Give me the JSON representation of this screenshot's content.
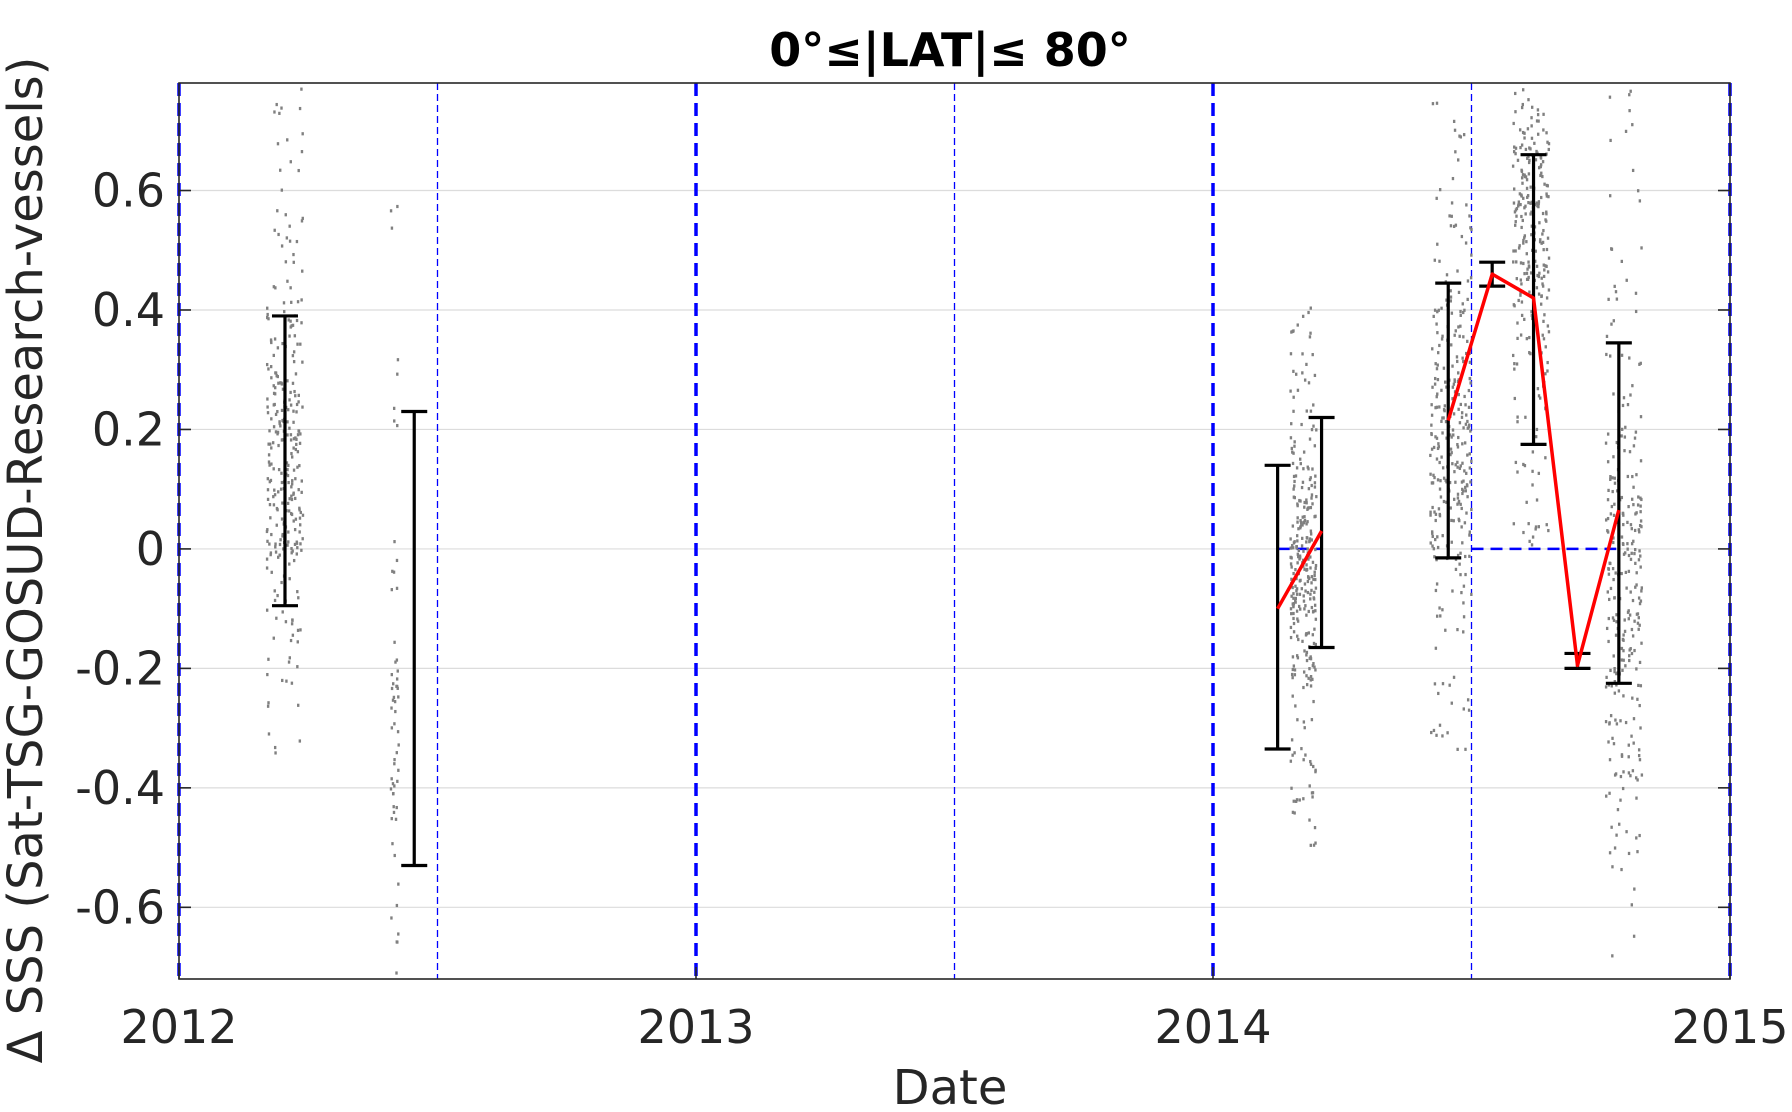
{
  "chart_data": {
    "type": "scatter",
    "title": "0°≤|LAT|≤ 80°",
    "xlabel": "Date",
    "ylabel": "Δ SSS (Sat-TSG-GOSUD-Research-vessels)",
    "xlim": [
      2012.0,
      2015.0
    ],
    "ylim": [
      -0.72,
      0.78
    ],
    "x_tick_labels": [
      "2012",
      "2013",
      "2014",
      "2015"
    ],
    "x_ticks": [
      2012,
      2013,
      2014,
      2015
    ],
    "y_tick_labels": [
      "-0.6",
      "-0.4",
      "-0.2",
      "0",
      "0.2",
      "0.4",
      "0.6"
    ],
    "y_ticks": [
      -0.6,
      -0.4,
      -0.2,
      0,
      0.2,
      0.4,
      0.6
    ],
    "grid": "horizontal",
    "colors": {
      "scatter": "#808080",
      "errorbar": "#000000",
      "mean_line": "#ff0000",
      "reference": "#0000ff",
      "grid": "#dcdcdc"
    },
    "year_boundaries": [
      2012.0,
      2013.0,
      2014.0,
      2015.0
    ],
    "half_year_lines": [
      2012.5,
      2013.5,
      2014.5
    ],
    "zero_reference_segments": [
      [
        2014.125,
        2014.21
      ],
      [
        2014.5,
        2014.78
      ]
    ],
    "scatter_clusters": [
      {
        "x_start": 2012.17,
        "x_end": 2012.24,
        "y_min": -0.35,
        "y_max": 0.78,
        "center": 0.15,
        "count": 300
      },
      {
        "x_start": 2012.41,
        "x_end": 2012.425,
        "y_min": -0.71,
        "y_max": 0.58,
        "center": -0.3,
        "count": 60
      },
      {
        "x_start": 2014.15,
        "x_end": 2014.2,
        "y_min": -0.5,
        "y_max": 0.41,
        "center": -0.05,
        "count": 300
      },
      {
        "x_start": 2014.42,
        "x_end": 2014.5,
        "y_min": -0.36,
        "y_max": 0.75,
        "center": 0.2,
        "count": 300
      },
      {
        "x_start": 2014.58,
        "x_end": 2014.65,
        "y_min": 0.0,
        "y_max": 0.78,
        "center": 0.55,
        "count": 260
      },
      {
        "x_start": 2014.76,
        "x_end": 2014.83,
        "y_min": -0.7,
        "y_max": 0.78,
        "center": -0.05,
        "count": 280
      }
    ],
    "error_bars": [
      {
        "x": 2012.205,
        "y_low": -0.095,
        "y_high": 0.39
      },
      {
        "x": 2012.455,
        "y_low": -0.53,
        "y_high": 0.23
      },
      {
        "x": 2014.125,
        "y_low": -0.335,
        "y_high": 0.14
      },
      {
        "x": 2014.21,
        "y_low": -0.165,
        "y_high": 0.22
      },
      {
        "x": 2014.455,
        "y_low": -0.015,
        "y_high": 0.445
      },
      {
        "x": 2014.54,
        "y_low": 0.44,
        "y_high": 0.48
      },
      {
        "x": 2014.62,
        "y_low": 0.175,
        "y_high": 0.66
      },
      {
        "x": 2014.705,
        "y_low": -0.2,
        "y_high": -0.175
      },
      {
        "x": 2014.785,
        "y_low": -0.225,
        "y_high": 0.345
      }
    ],
    "mean_series": [
      {
        "segment": [
          {
            "x": 2014.125,
            "y": -0.1
          },
          {
            "x": 2014.21,
            "y": 0.03
          }
        ]
      },
      {
        "segment": [
          {
            "x": 2014.455,
            "y": 0.215
          },
          {
            "x": 2014.54,
            "y": 0.46
          },
          {
            "x": 2014.62,
            "y": 0.42
          },
          {
            "x": 2014.705,
            "y": -0.195
          },
          {
            "x": 2014.785,
            "y": 0.065
          }
        ]
      }
    ]
  }
}
